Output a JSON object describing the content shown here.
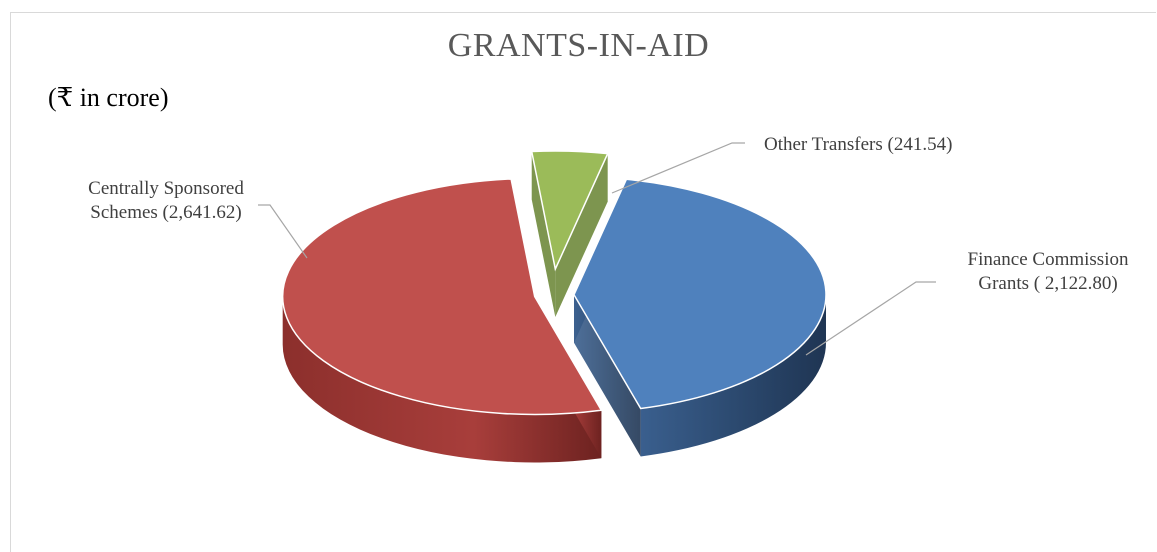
{
  "chart_data": {
    "type": "pie",
    "title": "GRANTS-IN-AID",
    "unit_note": "(₹ in crore)",
    "slices": [
      {
        "key": "fc",
        "label_line1": "Finance Commission",
        "label_line2": "Grants ( 2,122.80)",
        "value": 2122.8,
        "color": "#4f81bd"
      },
      {
        "key": "csp",
        "label_line1": "Centrally Sponsored",
        "label_line2": "Schemes (2,641.62)",
        "value": 2641.62,
        "color": "#c0504d"
      },
      {
        "key": "ot",
        "label_line1": "Other Transfers (241.54)",
        "label_line2": "",
        "value": 241.54,
        "color": "#9bbb59"
      }
    ],
    "style": "3d-exploded"
  }
}
